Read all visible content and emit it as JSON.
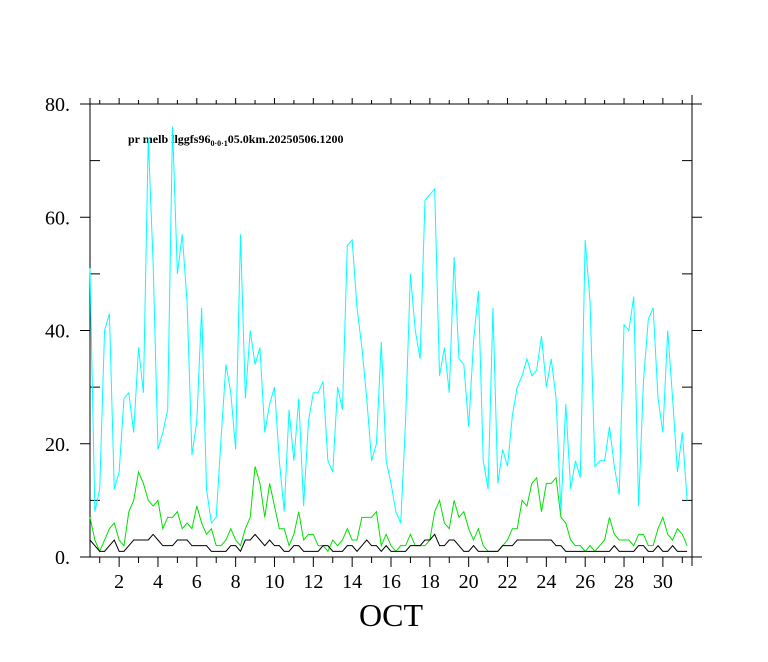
{
  "chart_data": {
    "type": "line",
    "title_main": "pr melb llggfs96",
    "title_sub": "0·0·1",
    "title_end": "05.0km.20250506.1200",
    "xlabel": "OCT",
    "xlim": [
      0.5,
      31.5
    ],
    "ylim": [
      0,
      80
    ],
    "xticks": [
      2,
      4,
      6,
      8,
      10,
      12,
      14,
      16,
      18,
      20,
      22,
      24,
      26,
      28,
      30
    ],
    "xminor_ticks": [
      1,
      3,
      5,
      7,
      9,
      11,
      13,
      15,
      17,
      19,
      21,
      23,
      25,
      27,
      29,
      31
    ],
    "yticks": [
      {
        "value": 0,
        "label": "0."
      },
      {
        "value": 20,
        "label": "20."
      },
      {
        "value": 40,
        "label": "40."
      },
      {
        "value": 60,
        "label": "60."
      },
      {
        "value": 80,
        "label": "80."
      }
    ],
    "yminor_ticks": [
      10,
      30,
      50,
      70
    ],
    "x": [
      0.5,
      0.75,
      1,
      1.25,
      1.5,
      1.75,
      2,
      2.25,
      2.5,
      2.75,
      3,
      3.25,
      3.5,
      3.75,
      4,
      4.25,
      4.5,
      4.75,
      5,
      5.25,
      5.5,
      5.75,
      6,
      6.25,
      6.5,
      6.75,
      7,
      7.25,
      7.5,
      7.75,
      8,
      8.25,
      8.5,
      8.75,
      9,
      9.25,
      9.5,
      9.75,
      10,
      10.25,
      10.5,
      10.75,
      11,
      11.25,
      11.5,
      11.75,
      12,
      12.25,
      12.5,
      12.75,
      13,
      13.25,
      13.5,
      13.75,
      14,
      14.25,
      14.5,
      14.75,
      15,
      15.25,
      15.5,
      15.75,
      16,
      16.25,
      16.5,
      16.75,
      17,
      17.25,
      17.5,
      17.75,
      18,
      18.25,
      18.5,
      18.75,
      19,
      19.25,
      19.5,
      19.75,
      20,
      20.25,
      20.5,
      20.75,
      21,
      21.25,
      21.5,
      21.75,
      22,
      22.25,
      22.5,
      22.75,
      23,
      23.25,
      23.5,
      23.75,
      24,
      24.25,
      24.5,
      24.75,
      25,
      25.25,
      25.5,
      25.75,
      26,
      26.25,
      26.5,
      26.75,
      27,
      27.25,
      27.5,
      27.75,
      28,
      28.25,
      28.5,
      28.75,
      29,
      29.25,
      29.5,
      29.75,
      30,
      30.25,
      30.5,
      30.75,
      31,
      31.25
    ],
    "series": [
      {
        "color": "#00ffff",
        "values": [
          51,
          8,
          12,
          40,
          43,
          12,
          15,
          28,
          29,
          22,
          37,
          29,
          74,
          52,
          19,
          22,
          26,
          76,
          50,
          57,
          45,
          18,
          24,
          44,
          12,
          6,
          7,
          21,
          34,
          29,
          19,
          57,
          28,
          40,
          34,
          37,
          22,
          27,
          30,
          17,
          8,
          26,
          17,
          28,
          9,
          24,
          29,
          29,
          31,
          17,
          15,
          30,
          26,
          55,
          56,
          44,
          37,
          28,
          17,
          20,
          38,
          17,
          13,
          8,
          6,
          24,
          50,
          40,
          35,
          63,
          64,
          65,
          32,
          37,
          29,
          53,
          35,
          34,
          23,
          38,
          47,
          17,
          12,
          44,
          13,
          19,
          16,
          25,
          30,
          32,
          35,
          32,
          33,
          39,
          30,
          35,
          28,
          8,
          27,
          12,
          17,
          14,
          56,
          45,
          16,
          17,
          17,
          23,
          16,
          11,
          41,
          40,
          46,
          9,
          31,
          42,
          44,
          28,
          22,
          40,
          28,
          15,
          22,
          10
        ]
      },
      {
        "color": "#00e000",
        "values": [
          7,
          3,
          1,
          3,
          5,
          6,
          3,
          2,
          8,
          10,
          15,
          13,
          10,
          9,
          10,
          5,
          7,
          7,
          8,
          5,
          6,
          5,
          9,
          6,
          4,
          5,
          2,
          2,
          3,
          5,
          3,
          2,
          5,
          7,
          16,
          13,
          7,
          13,
          9,
          5,
          5,
          2,
          4,
          8,
          3,
          4,
          4,
          2,
          2,
          1,
          3,
          2,
          3,
          5,
          3,
          3,
          7,
          7,
          7,
          8,
          2,
          4,
          2,
          1,
          2,
          2,
          4,
          2,
          2,
          2,
          3,
          8,
          10,
          6,
          5,
          10,
          7,
          8,
          5,
          3,
          5,
          2,
          1,
          1,
          1,
          2,
          3,
          5,
          5,
          10,
          9,
          13,
          14,
          8,
          13,
          13,
          14,
          7,
          6,
          3,
          2,
          2,
          1,
          2,
          1,
          2,
          3,
          7,
          4,
          3,
          3,
          3,
          2,
          4,
          4,
          2,
          2,
          5,
          7,
          4,
          3,
          5,
          4,
          2
        ]
      },
      {
        "color": "#000000",
        "values": [
          3,
          2,
          1,
          1,
          2,
          3,
          1,
          1,
          2,
          3,
          3,
          3,
          3,
          4,
          3,
          2,
          2,
          2,
          3,
          3,
          3,
          2,
          2,
          2,
          2,
          1,
          1,
          1,
          1,
          2,
          2,
          1,
          3,
          3,
          4,
          3,
          2,
          3,
          2,
          2,
          1,
          1,
          2,
          2,
          1,
          1,
          1,
          1,
          2,
          2,
          1,
          1,
          1,
          2,
          2,
          1,
          2,
          3,
          2,
          2,
          1,
          2,
          1,
          1,
          1,
          1,
          2,
          2,
          2,
          3,
          3,
          4,
          2,
          2,
          3,
          3,
          2,
          1,
          1,
          2,
          1,
          1,
          1,
          1,
          1,
          2,
          2,
          2,
          3,
          3,
          3,
          3,
          3,
          3,
          3,
          3,
          2,
          2,
          1,
          1,
          1,
          1,
          1,
          1,
          1,
          1,
          1,
          1,
          2,
          1,
          1,
          1,
          1,
          2,
          2,
          1,
          1,
          2,
          1,
          1,
          2,
          1,
          1,
          1
        ]
      }
    ]
  }
}
